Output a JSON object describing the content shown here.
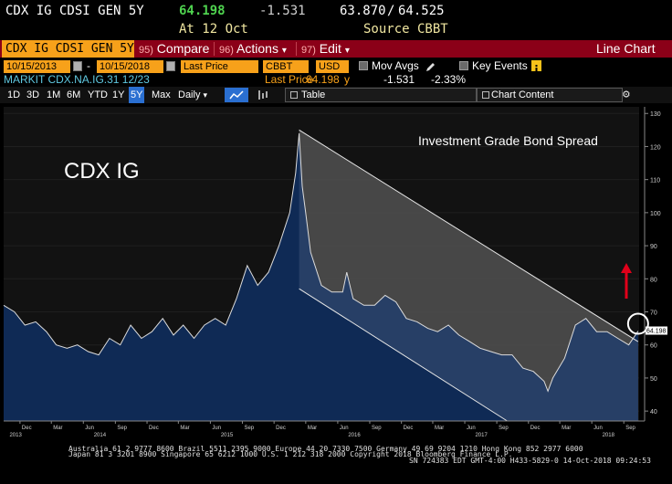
{
  "header": {
    "ticker": "CDX IG CDSI GEN 5Y",
    "price": "64.198",
    "change": "-1.531",
    "range_low": "63.870",
    "range_sep": "/",
    "range_high": "64.525",
    "at_date": "At 12 Oct",
    "source": "Source CBBT"
  },
  "menu": {
    "ticker_field": "CDX IG CDSI GEN 5Y",
    "compare_num": "95)",
    "compare": "Compare",
    "actions_num": "96)",
    "actions": "Actions",
    "edit_num": "97)",
    "edit": "Edit",
    "title": "Line Chart",
    "dropdown_glyph": "▾"
  },
  "controls": {
    "start_date": "10/15/2013",
    "date_sep": "-",
    "end_date": "10/15/2018",
    "field": "Last Price",
    "source": "CBBT",
    "currency": "USD",
    "mov_avgs": "Mov Avgs",
    "key_events": "Key Events"
  },
  "legend_row": {
    "security": "MARKIT CDX.NA.IG.31 12/23",
    "last_price_label": "Last Price",
    "last_price_value": "64.198",
    "last_price_suffix": "y",
    "change_abs": "-1.531",
    "change_pct": "-2.33%"
  },
  "toolbar": {
    "periods": [
      "1D",
      "3D",
      "1M",
      "6M",
      "YTD",
      "1Y",
      "5Y",
      "Max"
    ],
    "active_period": "5Y",
    "frequency": "Daily",
    "table": "Table",
    "chart_content": "Chart Content"
  },
  "chart_data": {
    "type": "line",
    "title": "CDX IG",
    "annotation": "Investment Grade Bond Spread",
    "last_value": 64.198,
    "last_value_label": "64.198",
    "ylim": [
      37,
      132
    ],
    "yticks": [
      40,
      50,
      60,
      70,
      80,
      90,
      100,
      110,
      120,
      130
    ],
    "xlim": [
      "2013-10-15",
      "2018-10-15"
    ],
    "x_tick_labels": [
      {
        "date": "2013-12-01",
        "label": "Dec"
      },
      {
        "date": "2014-03-01",
        "label": "Mar"
      },
      {
        "date": "2014-06-01",
        "label": "Jun"
      },
      {
        "date": "2014-09-01",
        "label": "Sep"
      },
      {
        "date": "2014-12-01",
        "label": "Dec"
      },
      {
        "date": "2015-03-01",
        "label": "Mar"
      },
      {
        "date": "2015-06-01",
        "label": "Jun"
      },
      {
        "date": "2015-09-01",
        "label": "Sep"
      },
      {
        "date": "2015-12-01",
        "label": "Dec"
      },
      {
        "date": "2016-03-01",
        "label": "Mar"
      },
      {
        "date": "2016-06-01",
        "label": "Jun"
      },
      {
        "date": "2016-09-01",
        "label": "Sep"
      },
      {
        "date": "2016-12-01",
        "label": "Dec"
      },
      {
        "date": "2017-03-01",
        "label": "Mar"
      },
      {
        "date": "2017-06-01",
        "label": "Jun"
      },
      {
        "date": "2017-09-01",
        "label": "Sep"
      },
      {
        "date": "2017-12-01",
        "label": "Dec"
      },
      {
        "date": "2018-03-01",
        "label": "Mar"
      },
      {
        "date": "2018-06-01",
        "label": "Jun"
      },
      {
        "date": "2018-09-01",
        "label": "Sep"
      }
    ],
    "x_year_labels": [
      {
        "date": "2013-11-01",
        "label": "2013"
      },
      {
        "date": "2014-07-01",
        "label": "2014"
      },
      {
        "date": "2015-07-01",
        "label": "2015"
      },
      {
        "date": "2016-07-01",
        "label": "2016"
      },
      {
        "date": "2017-07-01",
        "label": "2017"
      },
      {
        "date": "2018-07-01",
        "label": "2018"
      }
    ],
    "series": [
      {
        "x": [
          "2013-10-15",
          "2013-11-15",
          "2013-12-15",
          "2014-01-15",
          "2014-02-15",
          "2014-03-15",
          "2014-04-15",
          "2014-05-15",
          "2014-06-15",
          "2014-07-15",
          "2014-08-15",
          "2014-09-15",
          "2014-10-15",
          "2014-11-15",
          "2014-12-15",
          "2015-01-15",
          "2015-02-15",
          "2015-03-15",
          "2015-04-15",
          "2015-05-15",
          "2015-06-15",
          "2015-07-15",
          "2015-08-15",
          "2015-09-15",
          "2015-10-15",
          "2015-11-15",
          "2015-12-15",
          "2016-01-15",
          "2016-02-01",
          "2016-02-11",
          "2016-02-20",
          "2016-03-01",
          "2016-03-15",
          "2016-04-15",
          "2016-05-15",
          "2016-06-15",
          "2016-06-27",
          "2016-07-15",
          "2016-08-15",
          "2016-09-15",
          "2016-10-15",
          "2016-11-15",
          "2016-12-15",
          "2017-01-15",
          "2017-02-15",
          "2017-03-15",
          "2017-04-15",
          "2017-05-15",
          "2017-06-15",
          "2017-07-15",
          "2017-08-15",
          "2017-09-15",
          "2017-10-15",
          "2017-11-15",
          "2017-12-15",
          "2018-01-15",
          "2018-01-26",
          "2018-02-09",
          "2018-03-15",
          "2018-04-15",
          "2018-05-15",
          "2018-06-15",
          "2018-07-15",
          "2018-08-15",
          "2018-09-15",
          "2018-10-12"
        ],
        "values": [
          72,
          70,
          66,
          67,
          64,
          60,
          59,
          60,
          58,
          57,
          62,
          60,
          66,
          62,
          64,
          68,
          63,
          66,
          62,
          66,
          68,
          66,
          74,
          84,
          78,
          82,
          90,
          100,
          112,
          124,
          108,
          100,
          88,
          78,
          76,
          76,
          82,
          74,
          72,
          72,
          75,
          73,
          68,
          67,
          65,
          64,
          66,
          63,
          61,
          59,
          58,
          57,
          57,
          53,
          52,
          49,
          46,
          50,
          56,
          66,
          68,
          64,
          64,
          62,
          60,
          64.198
        ]
      }
    ],
    "trend_channel": {
      "upper": [
        {
          "x": "2016-02-11",
          "y": 125
        },
        {
          "x": "2018-10-12",
          "y": 61
        }
      ],
      "lower": [
        {
          "x": "2016-02-11",
          "y": 77
        },
        {
          "x": "2017-10-01",
          "y": 37
        }
      ]
    }
  },
  "footer": {
    "line1": "Australia 61 2 9777 8600 Brazil 5511 2395 9000 Europe 44 20 7330 7500 Germany 49 69 9204 1210 Hong Kong 852 2977 6000",
    "line2": "Japan 81 3 3201 8900       Singapore 65 6212 1000       U.S. 1 212 318 2000          Copyright 2018 Bloomberg Finance L.P.",
    "line3": "SN 724383 EDT  GMT-4:00 H433-5829-0 14-Oct-2018 09:24:53"
  },
  "colors": {
    "accent_orange": "#f7a11a",
    "menu_red": "#8b0018",
    "price_green": "#4fd34f",
    "area_fill": "#0f2a55",
    "arrow_red": "#e0001a"
  }
}
